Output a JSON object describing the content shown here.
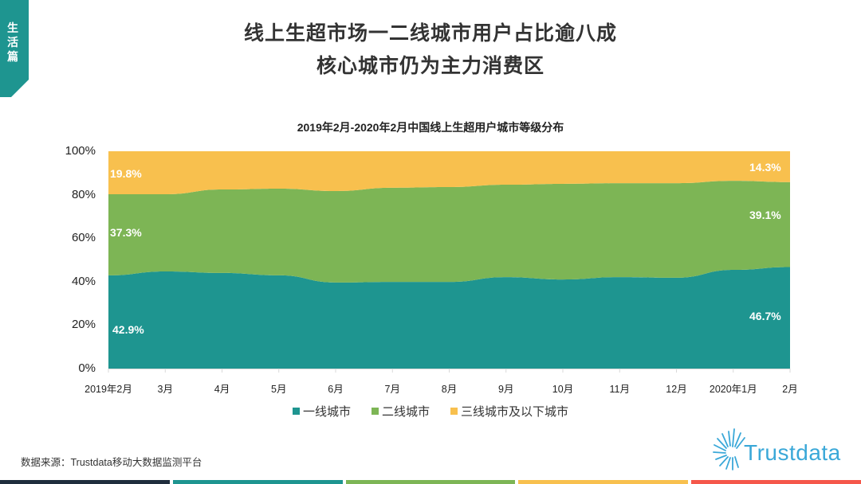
{
  "side_tab": {
    "chars": [
      "生",
      "活",
      "篇"
    ],
    "color": "#1e9590"
  },
  "header": {
    "title_line1": "线上生超市场一二线城市用户占比逾八成",
    "title_line2": "核心城市仍为主力消费区"
  },
  "chart_data": {
    "type": "area",
    "stacked": true,
    "percent": true,
    "title": "2019年2月-2020年2月中国线上生超用户城市等级分布",
    "xlabel": "",
    "ylabel": "",
    "ylim": [
      0,
      100
    ],
    "y_ticks": [
      "0%",
      "20%",
      "40%",
      "60%",
      "80%",
      "100%"
    ],
    "categories": [
      "2019年2月",
      "3月",
      "4月",
      "5月",
      "6月",
      "7月",
      "8月",
      "9月",
      "10月",
      "11月",
      "12月",
      "2020年1月",
      "2月"
    ],
    "series": [
      {
        "name": "一线城市",
        "color": "#1e9590",
        "values": [
          42.9,
          44.7,
          44.0,
          42.9,
          39.6,
          39.9,
          39.9,
          42.1,
          41.0,
          42.1,
          41.8,
          45.4,
          46.7
        ]
      },
      {
        "name": "二线城市",
        "color": "#7db555",
        "values": [
          37.3,
          35.5,
          38.4,
          39.9,
          42.1,
          43.3,
          43.6,
          42.5,
          44.0,
          43.2,
          43.5,
          41.0,
          39.1
        ]
      },
      {
        "name": "三线城市及以下城市",
        "color": "#f8c04e",
        "values": [
          19.8,
          19.8,
          17.6,
          17.2,
          18.3,
          16.8,
          16.5,
          15.4,
          15.0,
          14.7,
          14.7,
          13.6,
          14.3
        ]
      }
    ],
    "data_labels": [
      {
        "series": "三线城市及以下城市",
        "index": 0,
        "text": "19.8%"
      },
      {
        "series": "二线城市",
        "index": 0,
        "text": "37.3%"
      },
      {
        "series": "一线城市",
        "index": 0,
        "text": "42.9%"
      },
      {
        "series": "三线城市及以下城市",
        "index": 12,
        "text": "14.3%"
      },
      {
        "series": "二线城市",
        "index": 12,
        "text": "39.1%"
      },
      {
        "series": "一线城市",
        "index": 12,
        "text": "46.7%"
      }
    ],
    "grid": false,
    "legend_position": "bottom"
  },
  "legend": [
    {
      "label": "一线城市",
      "color": "#1e9590"
    },
    {
      "label": "二线城市",
      "color": "#7db555"
    },
    {
      "label": "三线城市及以下城市",
      "color": "#f8c04e"
    }
  ],
  "source": "数据来源：Trustdata移动大数据监测平台",
  "logo": {
    "text": "Trustdata",
    "color": "#3aa8d8"
  },
  "footer_colors": [
    "#1f2d3d",
    "#1e9590",
    "#7db555",
    "#f8c04e",
    "#f5574a"
  ]
}
